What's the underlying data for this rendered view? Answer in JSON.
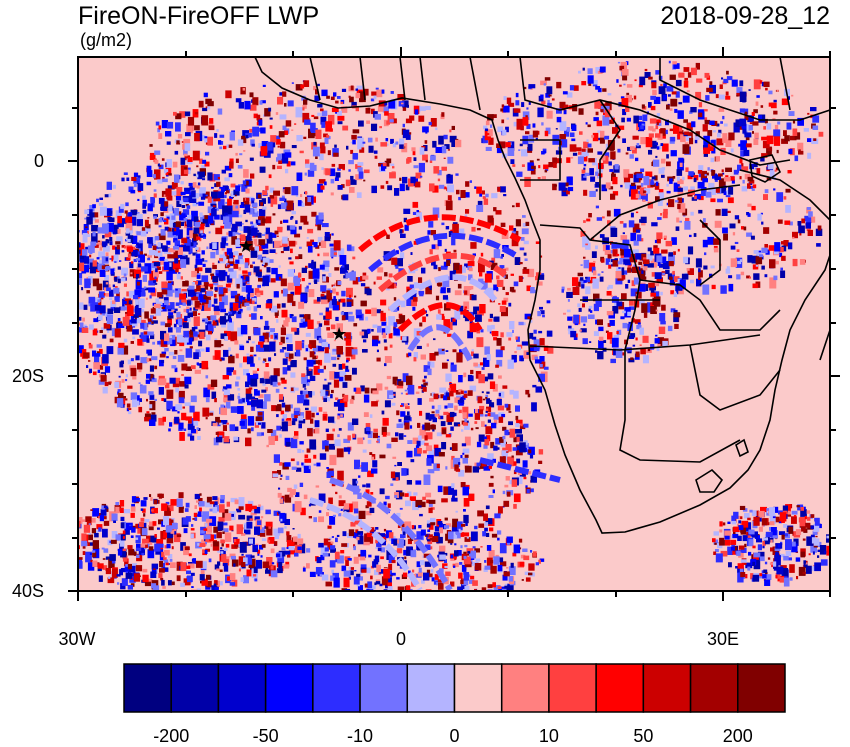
{
  "title": "FireON-FireOFF LWP",
  "datetime": "2018-09-28_12",
  "units": "(g/m2)",
  "map": {
    "type": "heatmap",
    "y_tick_labels": [
      "0",
      "20S",
      "40S"
    ],
    "x_tick_labels": [
      "30W",
      "0",
      "30E"
    ],
    "background_color": "#fbcaca",
    "land_outline_color": "#000000",
    "markers": [
      "star-marker",
      "star-marker"
    ]
  },
  "colorbar": {
    "labels": [
      "-200",
      "-50",
      "-10",
      "0",
      "10",
      "50",
      "200"
    ],
    "colors": [
      "#000080",
      "#0000a8",
      "#0000cd",
      "#0000ff",
      "#2d2dff",
      "#7272ff",
      "#b4b4ff",
      "#fbcaca",
      "#ff8080",
      "#ff4040",
      "#ff0000",
      "#cc0000",
      "#a30000",
      "#800000"
    ]
  }
}
